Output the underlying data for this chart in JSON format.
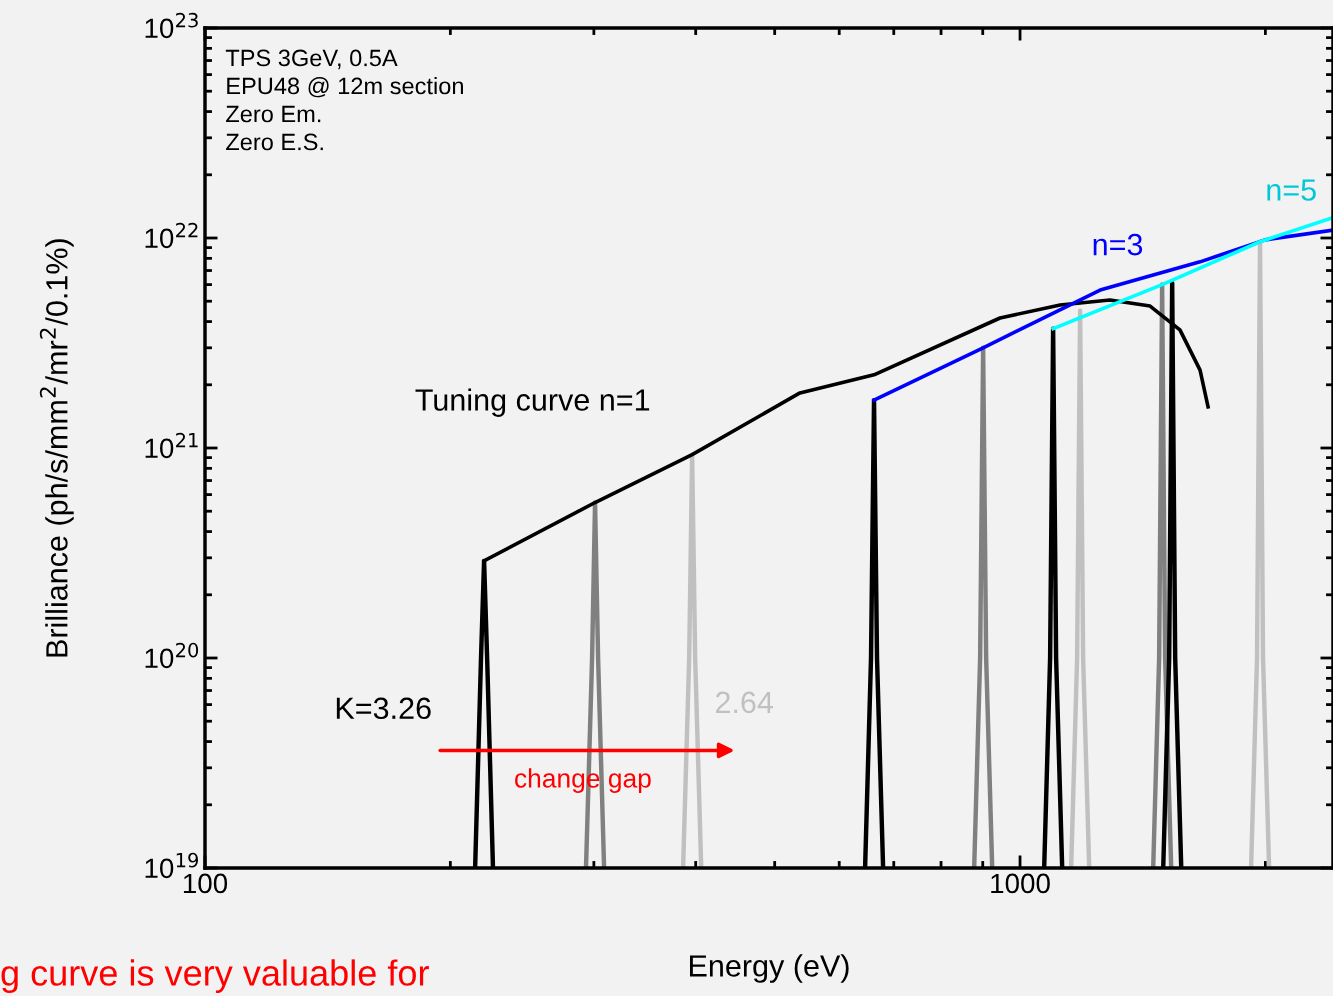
{
  "chart_data": {
    "type": "line",
    "xlabel": "Energy (eV)",
    "ylabel": "Brilliance (ph/s/mm$^{2}$/mr$^{2}$/0.1%)",
    "log": "xy",
    "xlim": [
      100,
      2421
    ],
    "ylim": [
      1e+19,
      1e+23
    ],
    "xticks": [
      100,
      1000
    ],
    "yticks": [
      {
        "value": 1e+19,
        "label": "10$^{19}$"
      },
      {
        "value": 1e+20,
        "label": "10$^{20}$"
      },
      {
        "value": 1e+21,
        "label": "10$^{21}$"
      },
      {
        "value": 1e+22,
        "label": "10$^{22}$"
      },
      {
        "value": 1e+23,
        "label": "10$^{23}$"
      }
    ],
    "grid": false,
    "marker": "none",
    "line_style": "solid",
    "series": [
      {
        "color": "#000000",
        "x": [
          214.5,
          218.1,
          220,
          221.9,
          225.6
        ],
        "values": [
          1e+19,
          1e+20,
          2.9e+20,
          1e+20,
          1e+19
        ]
      },
      {
        "color": "#808080",
        "x": [
          293.4,
          298.5,
          301,
          303.6,
          308.8
        ],
        "values": [
          1e+19,
          1e+20,
          5.5e+20,
          1e+20,
          1e+19
        ]
      },
      {
        "color": "#c0c0c0",
        "x": [
          386,
          392.7,
          396,
          399.4,
          406.3
        ],
        "values": [
          1e+19,
          1e+20,
          9.3e+20,
          1e+20,
          1e+19
        ]
      },
      {
        "color": "#000000",
        "x": [
          645.5,
          656.4,
          662,
          667.6,
          679.2
        ],
        "values": [
          1e+19,
          1e+20,
          1.69e+21,
          1e+20,
          1e+19
        ]
      },
      {
        "color": "#808080",
        "x": [
          878.5,
          893.4,
          901,
          908.7,
          924.4
        ],
        "values": [
          1e+19,
          1e+20,
          3e+21,
          1e+20,
          1e+19
        ]
      },
      {
        "color": "#000000",
        "x": [
          1070.6,
          1088.7,
          1098,
          1107.3,
          1126.5
        ],
        "values": [
          1e+19,
          1e+20,
          3.7e+21,
          1e+20,
          1e+19
        ]
      },
      {
        "color": "#c0c0c0",
        "x": [
          1155.4,
          1175,
          1185,
          1195.1,
          1215.8
        ],
        "values": [
          1e+19,
          1e+20,
          4.5e+21,
          1e+20,
          1e+19
        ]
      },
      {
        "color": "#808080",
        "x": [
          1456.7,
          1481.4,
          1494,
          1506.7,
          1532.8
        ],
        "values": [
          1e+19,
          1e+20,
          6e+21,
          1e+20,
          1e+19
        ]
      },
      {
        "color": "#000000",
        "x": [
          1498.6,
          1524,
          1537,
          1550.1,
          1576.9
        ],
        "values": [
          1e+19,
          1e+20,
          6.1e+21,
          1e+20,
          1e+19
        ]
      },
      {
        "color": "#c0c0c0",
        "x": [
          1920.8,
          1953.4,
          1970,
          1986.7,
          2021.2
        ],
        "values": [
          1e+19,
          1e+20,
          9.6e+21,
          1e+20,
          1e+19
        ]
      },
      {
        "color": "#000000",
        "x": [
          220,
          301,
          396,
          537,
          662,
          945,
          1120,
          1289,
          1444,
          1571,
          1663,
          1701
        ],
        "values": [
          2.9e+20,
          5.5e+20,
          9.3e+20,
          1.83e+21,
          2.23e+21,
          4.16e+21,
          4.8e+21,
          5.07e+21,
          4.74e+21,
          3.65e+21,
          2.35e+21,
          1.57e+21
        ]
      },
      {
        "color": "#0000ff",
        "x": [
          662,
          901,
          1254,
          1663,
          1998,
          2421
        ],
        "values": [
          1.69e+21,
          3e+21,
          5.65e+21,
          7.7e+21,
          9.8e+21,
          1.09e+22
        ]
      },
      {
        "color": "#00ffff",
        "x": [
          1098,
          1494,
          1970,
          2421
        ],
        "values": [
          3.7e+21,
          6e+21,
          9.6e+21,
          1.25e+22
        ]
      }
    ],
    "annotations": [
      "TPS 3GeV, 0.5A\nEPU48 @ 12m section\nZero Em.\nZero E.S.",
      "Tuning curve n=1",
      "n=3",
      "n=5",
      "K=3.26",
      "2.64",
      "change gap",
      "g curve is very valuable for"
    ]
  }
}
